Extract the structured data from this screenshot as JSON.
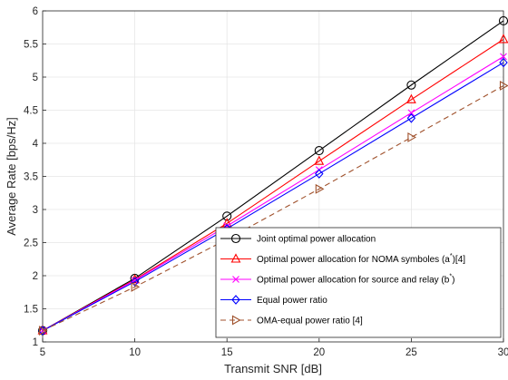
{
  "chart_data": {
    "type": "line",
    "xlabel": "Transmit SNR [dB]",
    "ylabel": "Average Rate [bps/Hz]",
    "xlim": [
      5,
      30
    ],
    "ylim": [
      1,
      6
    ],
    "xticks": [
      "5",
      "10",
      "15",
      "20",
      "25",
      "30"
    ],
    "yticks": [
      "1",
      "1.5",
      "2",
      "2.5",
      "3",
      "3.5",
      "4",
      "4.5",
      "5",
      "5.5",
      "6"
    ],
    "grid": true,
    "legend_position": "bottom-right",
    "x": [
      5,
      10,
      15,
      20,
      25,
      30
    ],
    "series": [
      {
        "name": "Joint optimal power allocation",
        "legend_main": "Joint optimal power allocation",
        "legend_sup": "",
        "legend_tail": "",
        "values": [
          1.17,
          1.96,
          2.9,
          3.89,
          4.88,
          5.85
        ],
        "color": "#000000",
        "marker": "circle",
        "dash": "solid"
      },
      {
        "name": "Optimal power allocation for NOMA symboles (a*)[4]",
        "legend_main": "Optimal power allocation for NOMA symboles (a",
        "legend_sup": "*",
        "legend_tail": ")[4]",
        "values": [
          1.17,
          1.94,
          2.79,
          3.73,
          4.66,
          5.57
        ],
        "color": "#ff0000",
        "marker": "triangle-up",
        "dash": "solid"
      },
      {
        "name": "Optimal power allocation for source and relay (b*)",
        "legend_main": "Optimal power allocation for source and relay (b",
        "legend_sup": "*",
        "legend_tail": ")",
        "values": [
          1.17,
          1.93,
          2.75,
          3.6,
          4.46,
          5.31
        ],
        "color": "#ff00ff",
        "marker": "x",
        "dash": "solid"
      },
      {
        "name": "Equal power ratio",
        "legend_main": "Equal power ratio",
        "legend_sup": "",
        "legend_tail": "",
        "values": [
          1.17,
          1.91,
          2.71,
          3.54,
          4.38,
          5.22
        ],
        "color": "#0000ff",
        "marker": "diamond",
        "dash": "solid"
      },
      {
        "name": "OMA-equal power ratio [4]",
        "legend_main": "OMA-equal power ratio [4]",
        "legend_sup": "",
        "legend_tail": "",
        "values": [
          1.17,
          1.83,
          2.55,
          3.31,
          4.09,
          4.87
        ],
        "color": "#a0522d",
        "marker": "triangle-right",
        "dash": "dashed"
      }
    ]
  }
}
